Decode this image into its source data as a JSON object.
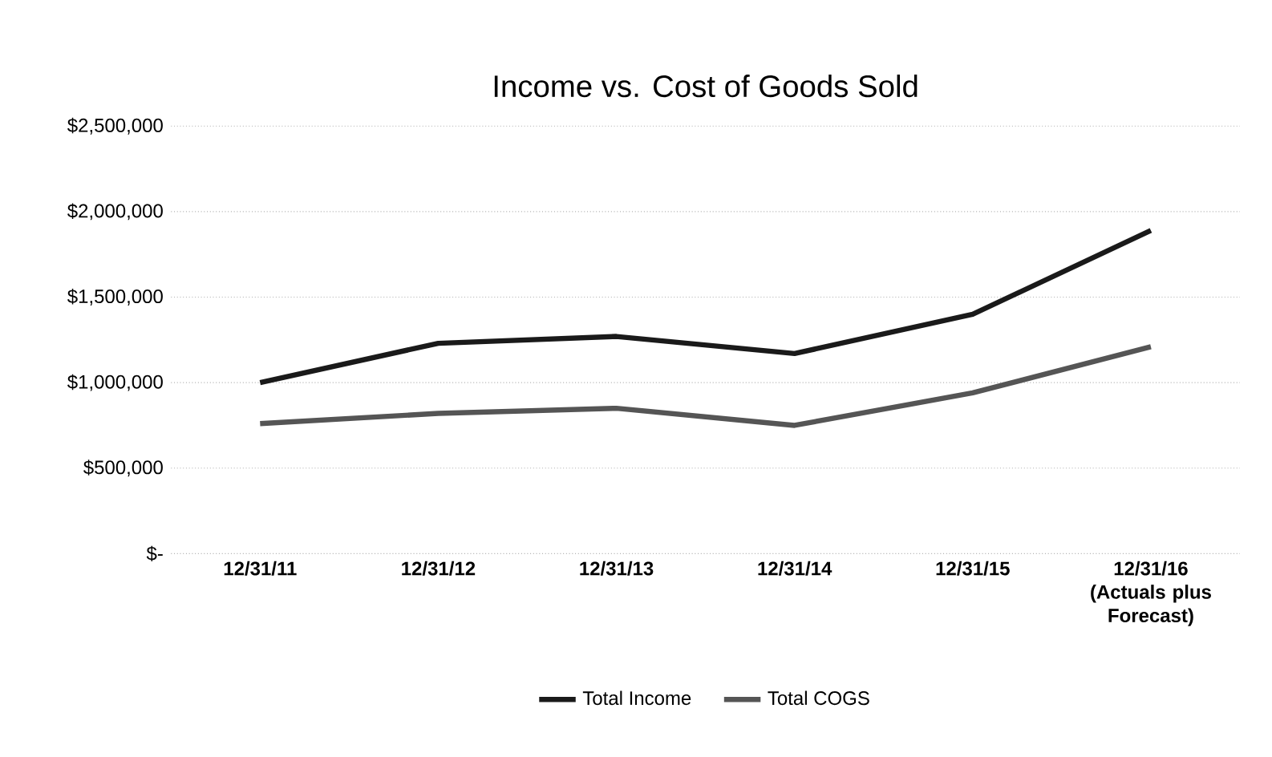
{
  "chart_data": {
    "type": "line",
    "title": "Income vs. Cost of Goods Sold",
    "categories": [
      "12/31/11",
      "12/31/12",
      "12/31/13",
      "12/31/14",
      "12/31/15",
      "12/31/16 (Actuals plus Forecast)"
    ],
    "series": [
      {
        "name": "Total Income",
        "color": "#1a1a1a",
        "values": [
          1000000,
          1230000,
          1270000,
          1170000,
          1400000,
          1890000
        ]
      },
      {
        "name": "Total COGS",
        "color": "#555555",
        "values": [
          760000,
          820000,
          850000,
          750000,
          940000,
          1210000
        ]
      }
    ],
    "ylim": [
      0,
      2500000
    ],
    "yticks": [
      {
        "value": 0,
        "label": "$-"
      },
      {
        "value": 500000,
        "label": "$500,000"
      },
      {
        "value": 1000000,
        "label": "$1,000,000"
      },
      {
        "value": 1500000,
        "label": "$1,500,000"
      },
      {
        "value": 2000000,
        "label": "$2,000,000"
      },
      {
        "value": 2500000,
        "label": "$2,500,000"
      }
    ],
    "grid": "y",
    "legend": "bottom",
    "marker": "none",
    "line_style": "solid"
  }
}
